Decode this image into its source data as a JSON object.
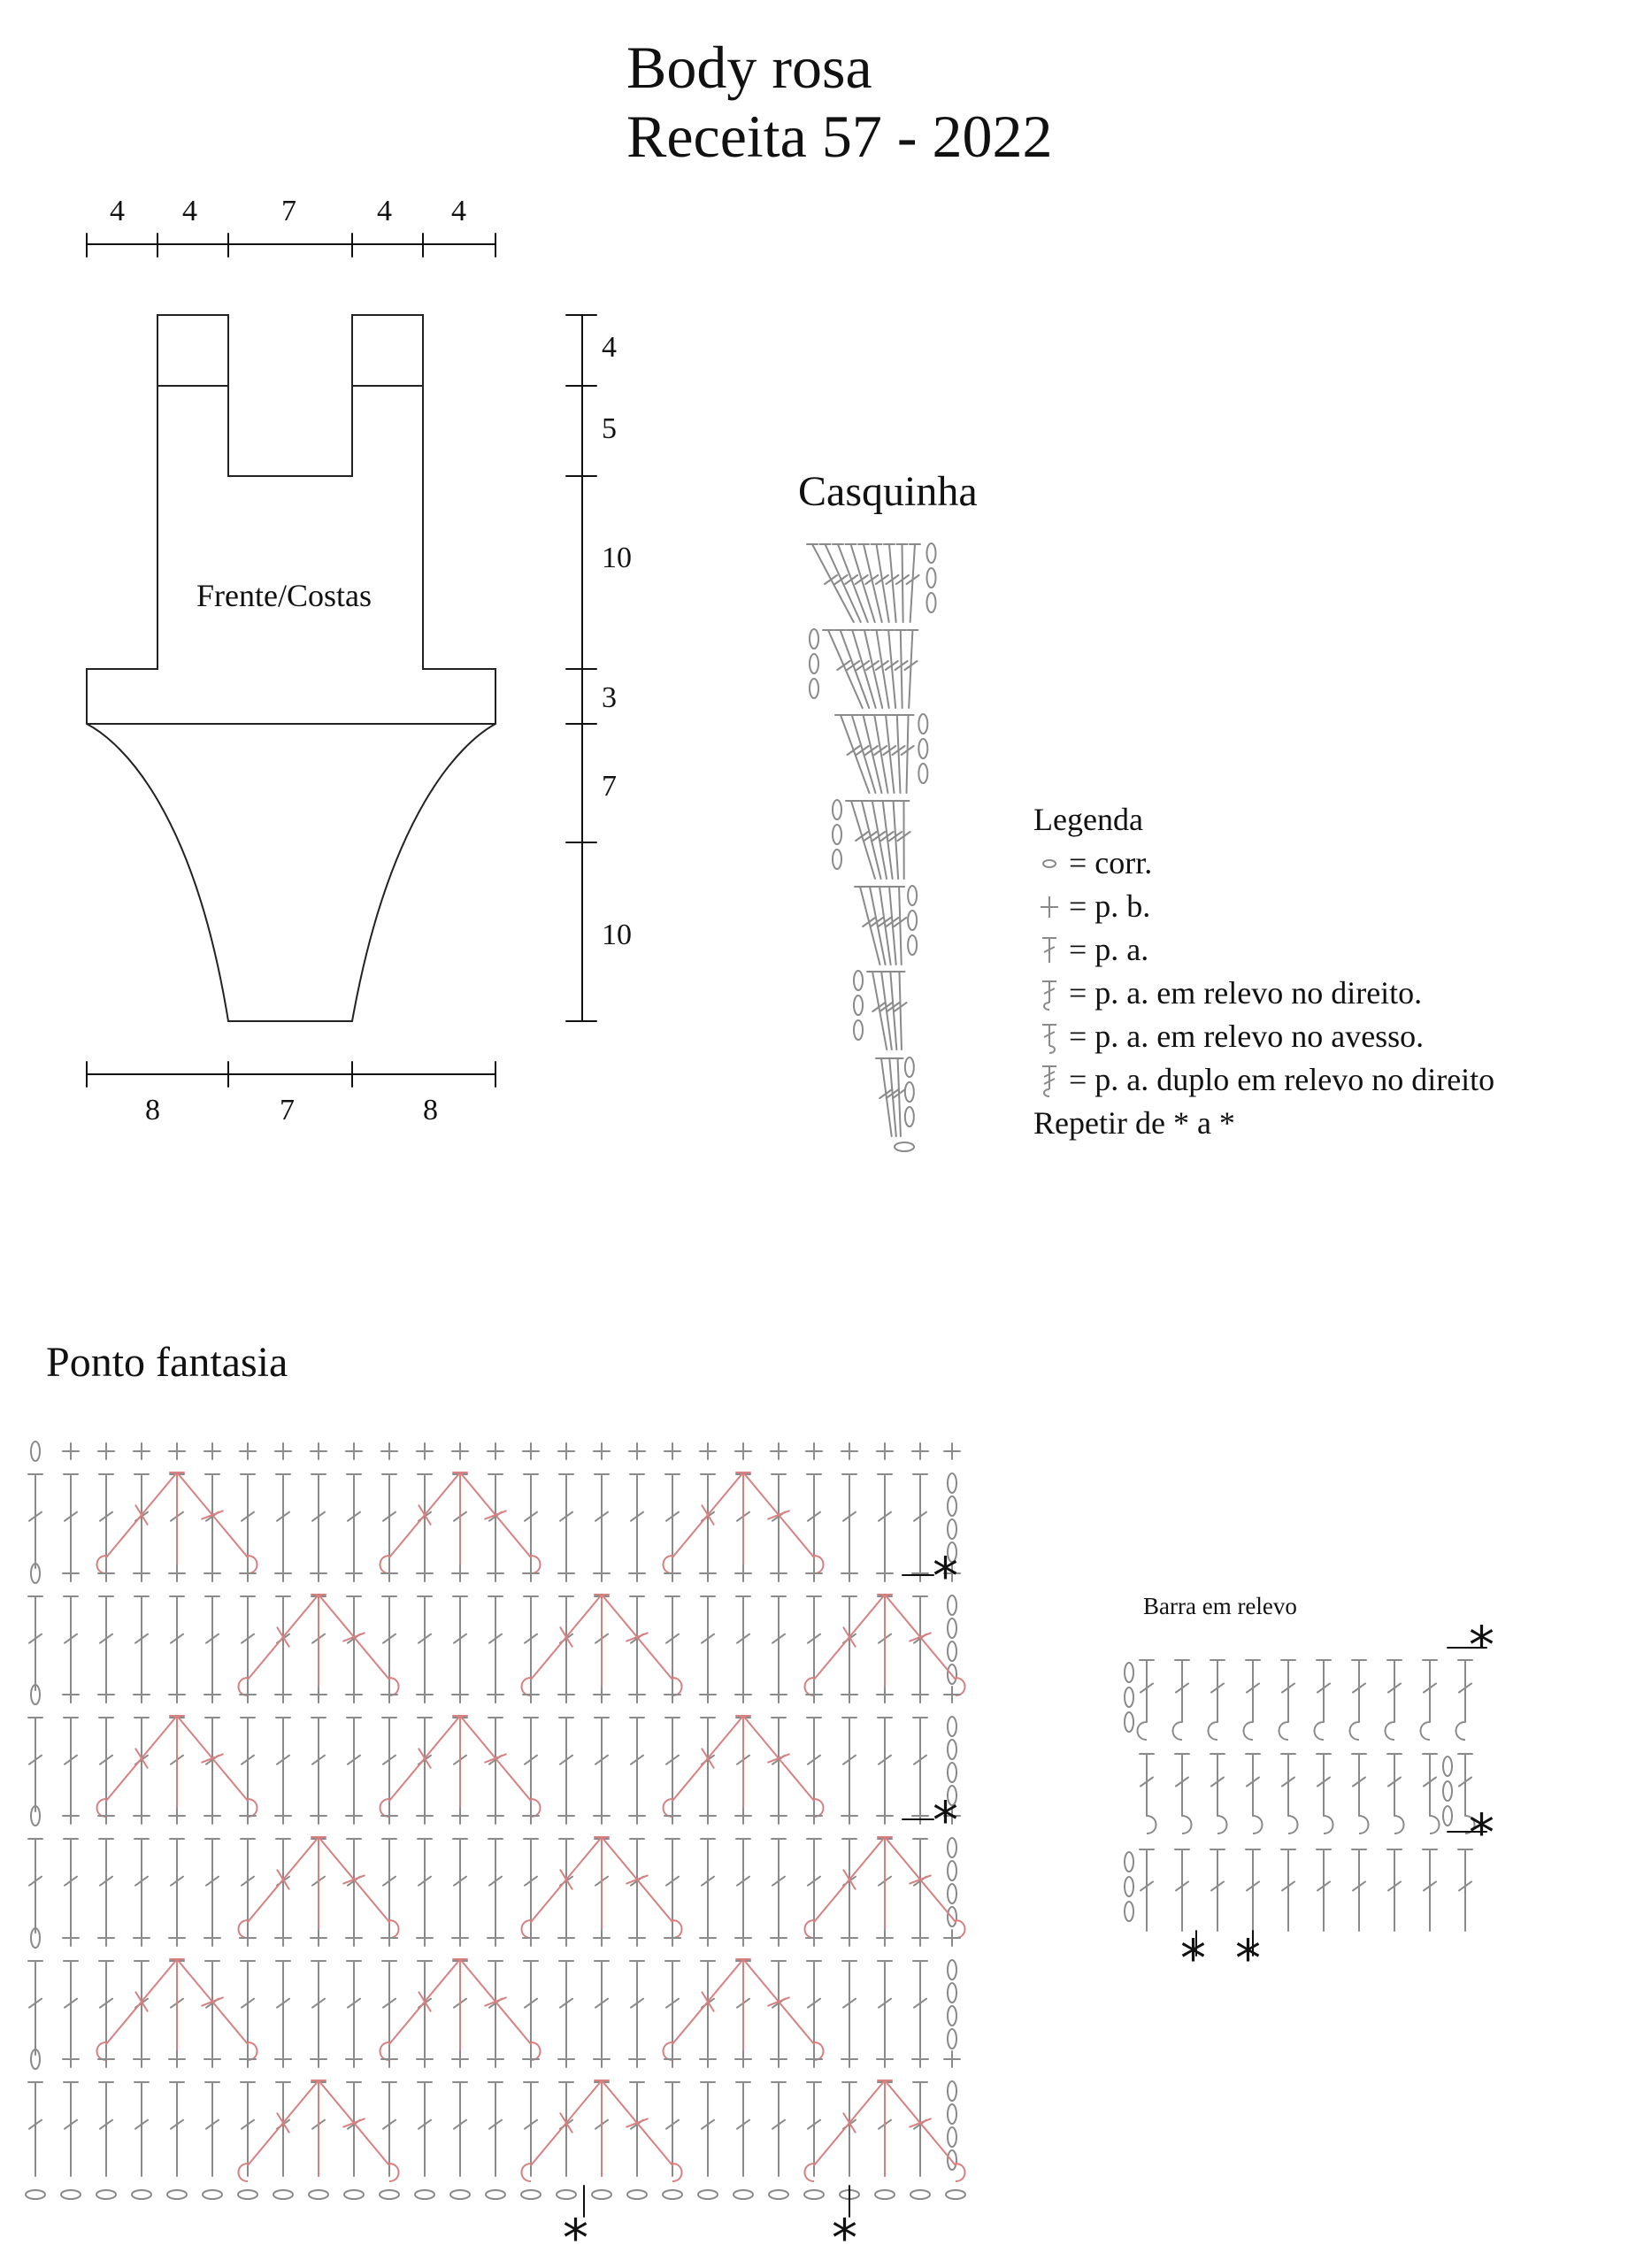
{
  "title": "Body rosa",
  "subtitle": "Receita  57 - 2022",
  "top_dims": [
    "4",
    "4",
    "7",
    "4",
    "4"
  ],
  "right_dims": [
    "4",
    "5",
    "10",
    "3",
    "7",
    "10"
  ],
  "bottom_dims": [
    "8",
    "7",
    "8"
  ],
  "piece_label": "Frente/Costas",
  "casquinha_title": "Casquinha",
  "legend": {
    "title": "Legenda",
    "items": [
      {
        "icon": "chain-icon",
        "text": "= corr."
      },
      {
        "icon": "single-crochet-icon",
        "text": "= p. b."
      },
      {
        "icon": "double-crochet-icon",
        "text": "= p. a."
      },
      {
        "icon": "front-post-dc-icon",
        "text": "= p. a. em relevo no direito."
      },
      {
        "icon": "back-post-dc-icon",
        "text": "= p. a. em relevo no avesso."
      },
      {
        "icon": "front-post-tr-icon",
        "text": "= p. a. duplo em relevo no direito"
      }
    ],
    "repeat": "Repetir de * a *"
  },
  "ponto_title": "Ponto fantasia",
  "barra_title": "Barra em relevo",
  "repeat_mark": "*",
  "colors": {
    "ink": "#111111",
    "symbol": "#8a8a8a",
    "accent": "#d88080"
  }
}
